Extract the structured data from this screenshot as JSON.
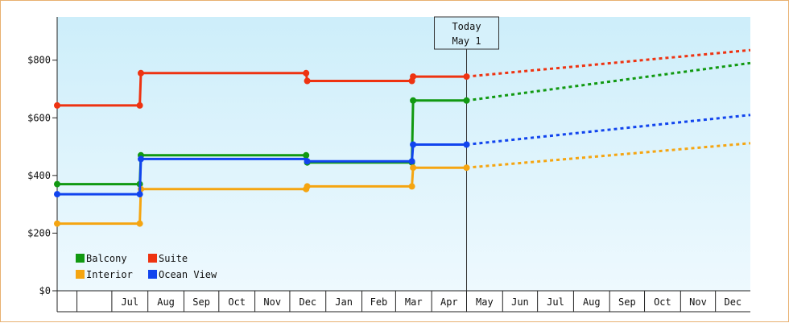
{
  "chart_data": {
    "type": "line",
    "title": "",
    "xlabel": "",
    "ylabel": "",
    "ylim": [
      0,
      950
    ],
    "xlim": [
      "2015-05-15",
      "2016-12-31"
    ],
    "y_ticks": [
      0,
      200,
      400,
      600,
      800
    ],
    "y_tick_labels": [
      "$0",
      "$200",
      "$400",
      "$600",
      "$800"
    ],
    "x_tick_labels": [
      "Jul",
      "Aug",
      "Sep",
      "Oct",
      "Nov",
      "Dec",
      "Jan",
      "Feb",
      "Mar",
      "Apr",
      "May",
      "Jun",
      "Jul",
      "Aug",
      "Sep",
      "Oct",
      "Nov",
      "Dec"
    ],
    "x_tick_dates": [
      "2015-07-01",
      "2015-08-01",
      "2015-09-01",
      "2015-10-01",
      "2015-11-01",
      "2015-12-01",
      "2016-01-01",
      "2016-02-01",
      "2016-03-01",
      "2016-04-01",
      "2016-05-01",
      "2016-06-01",
      "2016-07-01",
      "2016-08-01",
      "2016-09-01",
      "2016-10-01",
      "2016-11-01",
      "2016-12-01"
    ],
    "today_marker": {
      "date": "2016-05-01",
      "label_line1": "Today",
      "label_line2": "May 1"
    },
    "grid": false,
    "legend_position": "bottom-left",
    "series": [
      {
        "name": "Balcony",
        "color": "#119911",
        "history": [
          [
            "2015-05-15",
            370
          ],
          [
            "2015-07-25",
            370
          ],
          [
            "2015-07-26",
            470
          ],
          [
            "2015-12-15",
            470
          ],
          [
            "2015-12-16",
            445
          ],
          [
            "2016-03-15",
            445
          ],
          [
            "2016-03-16",
            660
          ],
          [
            "2016-05-01",
            660
          ]
        ],
        "markers": [
          [
            "2015-05-15",
            370
          ],
          [
            "2015-07-25",
            370
          ],
          [
            "2015-07-26",
            470
          ],
          [
            "2015-12-15",
            470
          ],
          [
            "2015-12-16",
            445
          ],
          [
            "2016-03-15",
            445
          ],
          [
            "2016-03-16",
            660
          ],
          [
            "2016-05-01",
            660
          ]
        ],
        "forecast": [
          [
            "2016-05-01",
            660
          ],
          [
            "2016-12-31",
            790
          ]
        ]
      },
      {
        "name": "Suite",
        "color": "#ee3311",
        "history": [
          [
            "2015-05-15",
            643
          ],
          [
            "2015-07-25",
            643
          ],
          [
            "2015-07-26",
            755
          ],
          [
            "2015-12-15",
            755
          ],
          [
            "2015-12-16",
            728
          ],
          [
            "2016-03-15",
            728
          ],
          [
            "2016-03-16",
            743
          ],
          [
            "2016-05-01",
            743
          ]
        ],
        "markers": [
          [
            "2015-05-15",
            643
          ],
          [
            "2015-07-25",
            643
          ],
          [
            "2015-07-26",
            755
          ],
          [
            "2015-12-15",
            755
          ],
          [
            "2015-12-16",
            728
          ],
          [
            "2016-03-15",
            728
          ],
          [
            "2016-03-16",
            743
          ],
          [
            "2016-05-01",
            743
          ]
        ],
        "forecast": [
          [
            "2016-05-01",
            743
          ],
          [
            "2016-12-31",
            835
          ]
        ]
      },
      {
        "name": "Interior",
        "color": "#f5a511",
        "history": [
          [
            "2015-05-15",
            233
          ],
          [
            "2015-07-25",
            233
          ],
          [
            "2015-07-26",
            353
          ],
          [
            "2015-12-15",
            353
          ],
          [
            "2015-12-16",
            362
          ],
          [
            "2016-03-15",
            362
          ],
          [
            "2016-03-16",
            427
          ],
          [
            "2016-05-01",
            427
          ]
        ],
        "markers": [
          [
            "2015-05-15",
            233
          ],
          [
            "2015-07-25",
            233
          ],
          [
            "2015-07-26",
            353
          ],
          [
            "2015-12-15",
            353
          ],
          [
            "2015-12-16",
            362
          ],
          [
            "2016-03-15",
            362
          ],
          [
            "2016-03-16",
            427
          ],
          [
            "2016-05-01",
            427
          ]
        ],
        "forecast": [
          [
            "2016-05-01",
            427
          ],
          [
            "2016-12-31",
            512
          ]
        ]
      },
      {
        "name": "Ocean View",
        "color": "#1144ee",
        "history": [
          [
            "2015-05-15",
            335
          ],
          [
            "2015-07-25",
            335
          ],
          [
            "2015-07-26",
            457
          ],
          [
            "2015-12-15",
            457
          ],
          [
            "2015-12-16",
            449
          ],
          [
            "2016-03-15",
            449
          ],
          [
            "2016-03-16",
            507
          ],
          [
            "2016-05-01",
            507
          ]
        ],
        "markers": [
          [
            "2015-05-15",
            335
          ],
          [
            "2015-07-25",
            335
          ],
          [
            "2015-07-26",
            457
          ],
          [
            "2015-12-16",
            449
          ],
          [
            "2016-03-15",
            449
          ],
          [
            "2016-03-16",
            507
          ],
          [
            "2016-05-01",
            507
          ]
        ],
        "forecast": [
          [
            "2016-05-01",
            507
          ],
          [
            "2016-12-31",
            610
          ]
        ]
      }
    ],
    "legend": [
      {
        "label": "Balcony",
        "color": "#119911"
      },
      {
        "label": "Suite",
        "color": "#ee3311"
      },
      {
        "label": "Interior",
        "color": "#f5a511"
      },
      {
        "label": "Ocean View",
        "color": "#1144ee"
      }
    ],
    "background_gradient": [
      "#cdeefa",
      "#eef9fe"
    ]
  }
}
